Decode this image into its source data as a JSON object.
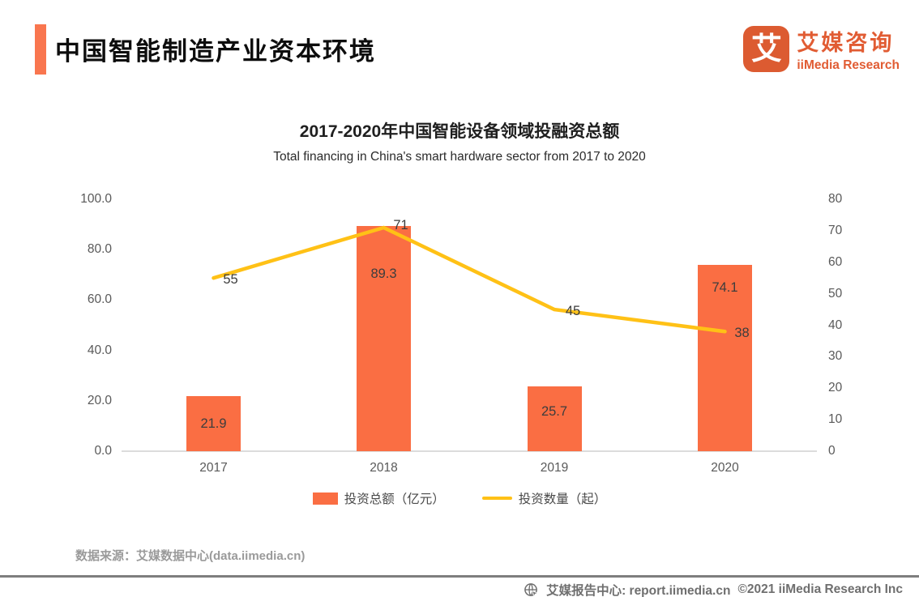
{
  "header": {
    "title": "中国智能制造产业资本环境",
    "logo": {
      "icon_char": "艾",
      "brand_cn": "艾媒咨询",
      "brand_en": "iiMedia Research"
    }
  },
  "chart": {
    "title": "2017-2020年中国智能设备领域投融资总额",
    "subtitle": "Total financing in China's smart hardware sector from 2017 to 2020",
    "source": "数据来源：艾媒数据中心(data.iimedia.cn)"
  },
  "chart_data": {
    "type": "bar+line combo",
    "categories": [
      "2017",
      "2018",
      "2019",
      "2020"
    ],
    "series": [
      {
        "name": "投资总额（亿元）",
        "type": "bar",
        "axis": "left",
        "values": [
          21.9,
          89.3,
          25.7,
          74.1
        ],
        "color": "#FA6E43"
      },
      {
        "name": "投资数量（起）",
        "type": "line",
        "axis": "right",
        "values": [
          55,
          71,
          45,
          38
        ],
        "color": "#FFC116"
      }
    ],
    "left_axis": {
      "ticks": [
        "100.0",
        "80.0",
        "60.0",
        "40.0",
        "20.0",
        "0.0"
      ],
      "min": 0,
      "max": 100
    },
    "right_axis": {
      "ticks": [
        "80",
        "70",
        "60",
        "50",
        "40",
        "30",
        "20",
        "10",
        "0"
      ],
      "min": 0,
      "max": 80
    },
    "grid": false,
    "legend_position": "bottom",
    "data_labels_visible": true
  },
  "colors": {
    "accent_bar": "#F9764F",
    "brand_orange": "#E15C33",
    "axis_text": "#595959",
    "axis_line": "#DCDCDC",
    "source_text": "#9A9A9A",
    "footer_text": "#6F6F6F"
  },
  "footer": {
    "report_center": "艾媒报告中心: report.iimedia.cn",
    "copyright": "©2021  iiMedia Research  Inc"
  }
}
